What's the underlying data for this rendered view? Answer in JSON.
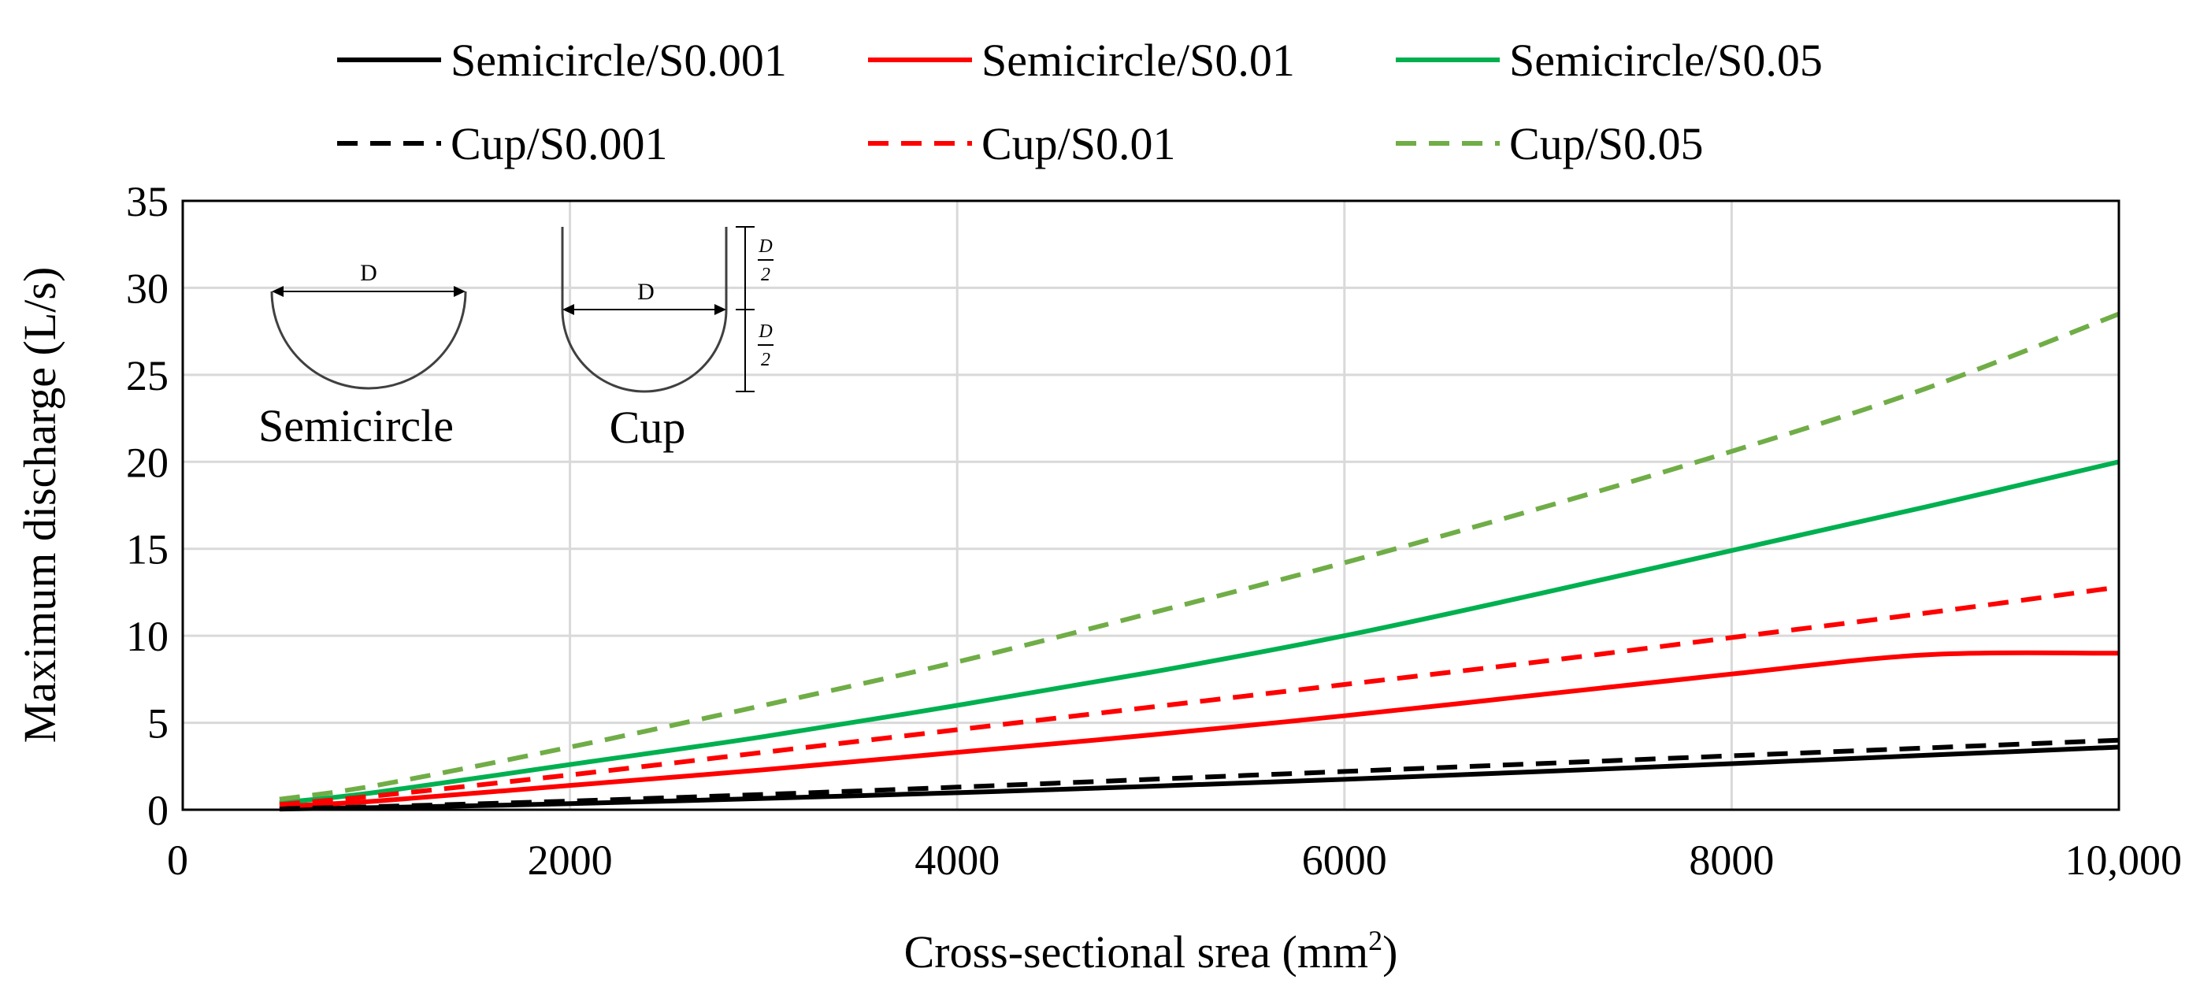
{
  "chart_data": {
    "type": "line",
    "title": "",
    "xlabel": "Cross-sectional srea (mm",
    "xlabel_sup": "2",
    "xlabel_close": ")",
    "ylabel": "Maximum discharge (L/s)",
    "xlim": [
      0,
      10000
    ],
    "ylim": [
      0,
      35
    ],
    "grid": true,
    "legend_position": "top",
    "x_ticks": [
      {
        "value": 0,
        "label": "0"
      },
      {
        "value": 2000,
        "label": "2000"
      },
      {
        "value": 4000,
        "label": "4000"
      },
      {
        "value": 6000,
        "label": "6000"
      },
      {
        "value": 8000,
        "label": "8000"
      },
      {
        "value": 10000,
        "label": "10,000"
      }
    ],
    "y_ticks": [
      {
        "value": 0,
        "label": "0"
      },
      {
        "value": 5,
        "label": "5"
      },
      {
        "value": 10,
        "label": "10"
      },
      {
        "value": 15,
        "label": "15"
      },
      {
        "value": 20,
        "label": "20"
      },
      {
        "value": 25,
        "label": "25"
      },
      {
        "value": 30,
        "label": "30"
      },
      {
        "value": 35,
        "label": "35"
      }
    ],
    "x": [
      500,
      1000,
      2000,
      3000,
      4000,
      5000,
      6000,
      7000,
      8000,
      9000,
      10000
    ],
    "series": [
      {
        "name": "Semicircle/S0.001",
        "color": "#000000",
        "dash": "solid",
        "values": [
          0.04,
          0.12,
          0.35,
          0.65,
          0.98,
          1.35,
          1.75,
          2.19,
          2.65,
          3.13,
          3.6
        ]
      },
      {
        "name": "Semicircle/S0.01",
        "color": "#ff0000",
        "dash": "solid",
        "values": [
          0.2,
          0.5,
          1.4,
          2.3,
          3.3,
          4.3,
          5.4,
          6.6,
          7.8,
          8.9,
          9.0
        ]
      },
      {
        "name": "Semicircle/S0.05",
        "color": "#00b050",
        "dash": "solid",
        "values": [
          0.4,
          1.0,
          2.6,
          4.2,
          6.0,
          7.9,
          10.0,
          12.4,
          14.9,
          17.4,
          20.0
        ]
      },
      {
        "name": "Cup/S0.001",
        "color": "#000000",
        "dash": "dashed",
        "values": [
          0.06,
          0.18,
          0.5,
          0.88,
          1.3,
          1.75,
          2.2,
          2.65,
          3.1,
          3.55,
          4.0
        ]
      },
      {
        "name": "Cup/S0.01",
        "color": "#ff0000",
        "dash": "dashed",
        "values": [
          0.3,
          0.8,
          2.0,
          3.3,
          4.6,
          5.9,
          7.2,
          8.5,
          9.9,
          11.3,
          12.8
        ]
      },
      {
        "name": "Cup/S0.05",
        "color": "#70ad47",
        "dash": "dashed",
        "values": [
          0.6,
          1.4,
          3.6,
          6.0,
          8.5,
          11.3,
          14.2,
          17.3,
          20.6,
          24.2,
          28.5
        ]
      }
    ],
    "annotations": {
      "semicircle_label": "Semicircle",
      "cup_label": "Cup",
      "diameter_label": "D",
      "half_label_num": "D",
      "half_label_den": "2"
    }
  }
}
